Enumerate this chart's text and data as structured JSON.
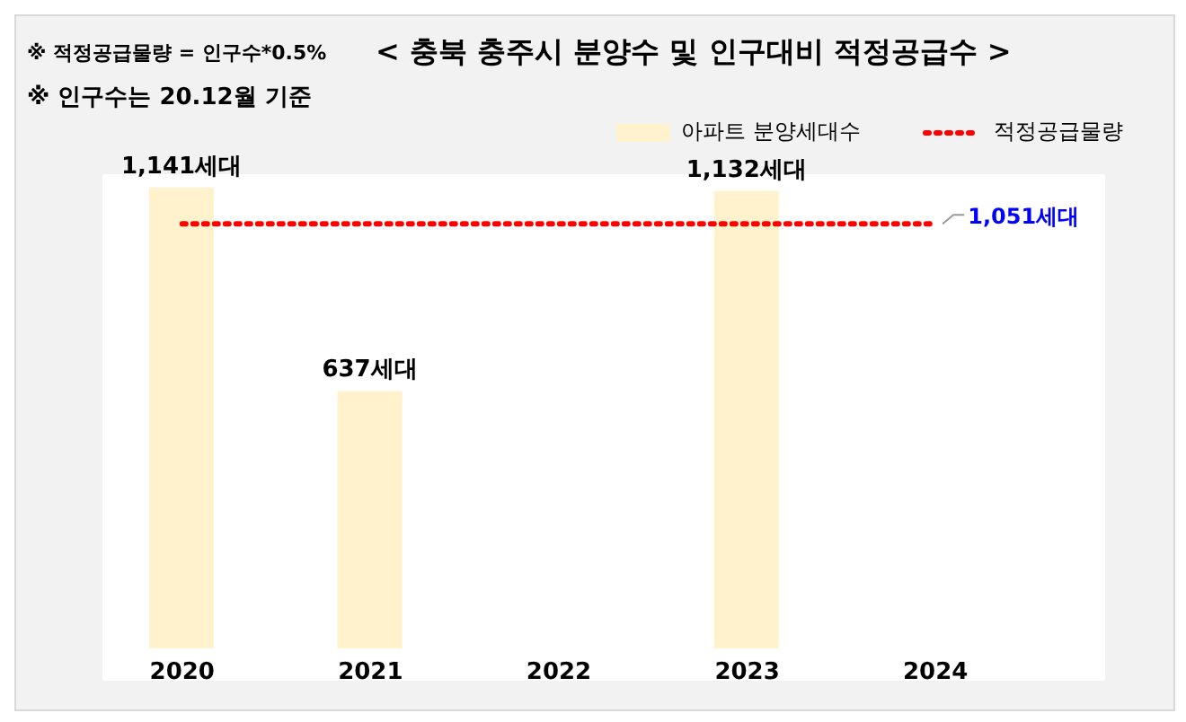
{
  "chart_data": {
    "type": "bar",
    "title": "< 충북 충주시 분양수 및 인구대비 적정공급수 >",
    "annotations": [
      "※ 적정공급물량 = 인구수*0.5%",
      "※ 인구수는 20.12월 기준"
    ],
    "categories": [
      "2020",
      "2021",
      "2022",
      "2023",
      "2024"
    ],
    "series": [
      {
        "name": "아파트 분양세대수",
        "color": "#fff2cc",
        "values": [
          1141,
          637,
          null,
          1132,
          null
        ],
        "value_labels": [
          "1,141세대",
          "637세대",
          null,
          "1,132세대",
          null
        ]
      },
      {
        "name": "적정공급물량",
        "type": "line",
        "color": "#ff0000",
        "line_style": "dotted",
        "marker": "none",
        "values": [
          1051,
          1051,
          1051,
          1051,
          1051
        ],
        "value_labels": [
          null,
          null,
          null,
          null,
          "1,051세대"
        ]
      }
    ],
    "legend": "top right"
  }
}
